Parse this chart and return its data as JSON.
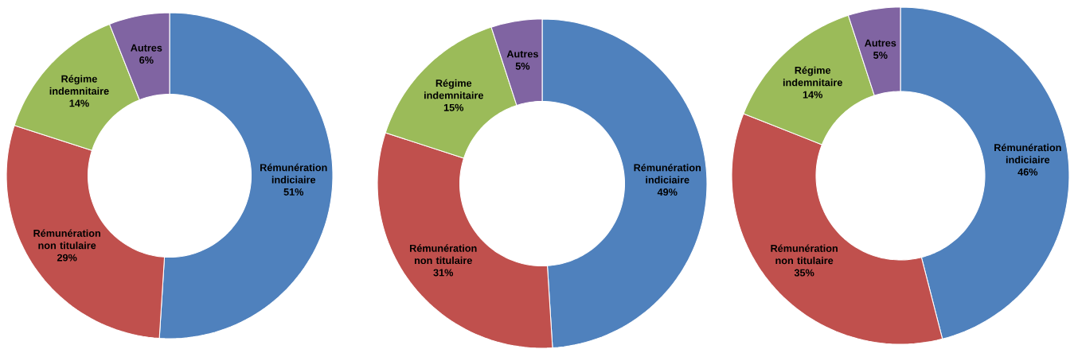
{
  "chart_data": [
    {
      "type": "donut",
      "categories": [
        "Rémunération indiciaire",
        "Rémunération non titulaire",
        "Régime indemnitaire",
        "Autres"
      ],
      "values": [
        51,
        29,
        14,
        6
      ],
      "colors": [
        "#4f81bd",
        "#c0504d",
        "#9bbb59",
        "#8064a2"
      ],
      "value_labels": [
        "51%",
        "29%",
        "14%",
        "6%"
      ]
    },
    {
      "type": "donut",
      "categories": [
        "Rémunération indiciaire",
        "Rémunération non titulaire",
        "Régime indemnitaire",
        "Autres"
      ],
      "values": [
        49,
        31,
        15,
        5
      ],
      "colors": [
        "#4f81bd",
        "#c0504d",
        "#9bbb59",
        "#8064a2"
      ],
      "value_labels": [
        "49%",
        "31%",
        "15%",
        "5%"
      ]
    },
    {
      "type": "donut",
      "categories": [
        "Rémunération indiciaire",
        "Rémunération non titulaire",
        "Régime indemnitaire",
        "Autres"
      ],
      "values": [
        46,
        35,
        14,
        5
      ],
      "colors": [
        "#4f81bd",
        "#c0504d",
        "#9bbb59",
        "#8064a2"
      ],
      "value_labels": [
        "46%",
        "35%",
        "14%",
        "5%"
      ]
    }
  ]
}
